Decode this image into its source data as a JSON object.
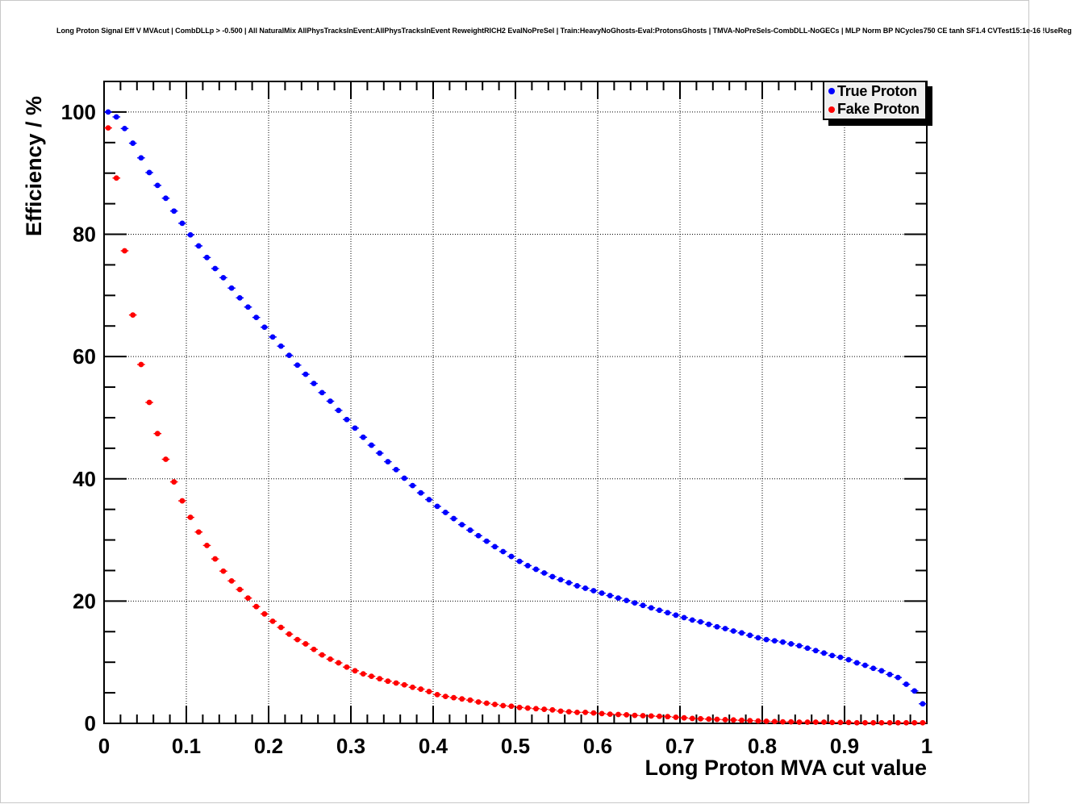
{
  "chart_data": {
    "type": "scatter",
    "title": "Long Proton Signal Eff V MVAcut | CombDLLp > -0.500 | All NaturalMix AllPhysTracksInEvent:AllPhysTracksInEvent ReweightRICH2 EvalNoPreSel | Train:HeavyNoGhosts-Eval:ProtonsGhosts | TMVA-NoPreSels-CombDLL-NoGECs | MLP Norm BP NCycles750 CE tanh SF1.4 CVTest15:1e-16 !UseReg",
    "xlabel": "Long Proton MVA cut value",
    "ylabel": "Efficiency / %",
    "xlim": [
      0,
      1
    ],
    "ylim": [
      0,
      105
    ],
    "grid": true,
    "legend_position": "top-right",
    "marker_style": "filled-circle-with-horizontal-error-bar",
    "x": {
      "start": 0.005,
      "step": 0.01,
      "count": 100
    },
    "xticks": {
      "values": [
        0,
        0.1,
        0.2,
        0.3,
        0.4,
        0.5,
        0.6,
        0.7,
        0.8,
        0.9,
        1
      ],
      "labels": [
        "0",
        "0.1",
        "0.2",
        "0.3",
        "0.4",
        "0.5",
        "0.6",
        "0.7",
        "0.8",
        "0.9",
        "1"
      ],
      "minor_step": 0.02
    },
    "yticks": {
      "values": [
        0,
        20,
        40,
        60,
        80,
        100
      ],
      "labels": [
        "0",
        "20",
        "40",
        "60",
        "80",
        "100"
      ],
      "minor_step": 5
    },
    "series": [
      {
        "name": "True Proton",
        "color": "#0000ff",
        "values": [
          100.0,
          99.2,
          97.3,
          94.9,
          92.5,
          90.1,
          88.0,
          85.9,
          83.8,
          81.8,
          79.9,
          78.1,
          76.2,
          74.4,
          72.9,
          71.2,
          69.6,
          68.1,
          66.4,
          64.8,
          63.2,
          61.7,
          60.2,
          58.6,
          57.1,
          55.6,
          54.1,
          52.7,
          51.2,
          49.7,
          48.3,
          46.8,
          45.5,
          44.2,
          42.8,
          41.5,
          40.1,
          38.9,
          37.7,
          36.6,
          35.5,
          34.5,
          33.5,
          32.5,
          31.6,
          30.7,
          29.8,
          28.9,
          28.1,
          27.3,
          26.5,
          25.8,
          25.2,
          24.6,
          24.0,
          23.5,
          23.0,
          22.5,
          22.1,
          21.7,
          21.3,
          20.9,
          20.5,
          20.1,
          19.7,
          19.3,
          18.9,
          18.5,
          18.1,
          17.7,
          17.3,
          16.9,
          16.6,
          16.2,
          15.8,
          15.5,
          15.1,
          14.8,
          14.4,
          14.0,
          13.7,
          13.5,
          13.3,
          13.0,
          12.7,
          12.3,
          11.9,
          11.5,
          11.1,
          10.8,
          10.4,
          9.9,
          9.5,
          9.0,
          8.6,
          8.0,
          7.5,
          6.4,
          5.3,
          3.2
        ]
      },
      {
        "name": "Fake Proton",
        "color": "#ff0000",
        "values": [
          97.4,
          89.2,
          77.3,
          66.8,
          58.7,
          52.5,
          47.4,
          43.2,
          39.5,
          36.4,
          33.7,
          31.3,
          29.1,
          26.9,
          24.9,
          23.3,
          21.9,
          20.5,
          19.1,
          17.9,
          16.7,
          15.7,
          14.6,
          13.7,
          13.0,
          12.1,
          11.2,
          10.5,
          9.9,
          9.2,
          8.6,
          8.1,
          7.7,
          7.3,
          6.9,
          6.6,
          6.3,
          5.9,
          5.6,
          5.2,
          4.7,
          4.4,
          4.2,
          4.0,
          3.8,
          3.5,
          3.3,
          3.1,
          2.9,
          2.8,
          2.6,
          2.5,
          2.4,
          2.3,
          2.2,
          2.0,
          1.9,
          1.8,
          1.8,
          1.7,
          1.6,
          1.5,
          1.45,
          1.4,
          1.3,
          1.25,
          1.2,
          1.15,
          1.1,
          1.0,
          0.9,
          0.8,
          0.75,
          0.7,
          0.65,
          0.6,
          0.55,
          0.5,
          0.45,
          0.4,
          0.35,
          0.3,
          0.25,
          0.25,
          0.2,
          0.2,
          0.2,
          0.2,
          0.15,
          0.15,
          0.15,
          0.1,
          0.1,
          0.1,
          0.1,
          0.1,
          0.1,
          0.1,
          0.1,
          0.1
        ]
      }
    ]
  }
}
